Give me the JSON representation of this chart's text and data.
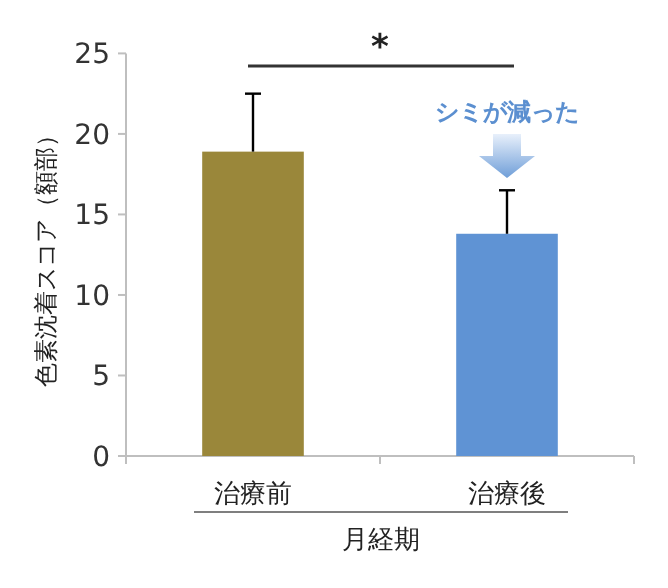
{
  "chart_data": {
    "type": "bar",
    "xlabel": "月経期",
    "ylabel": "色素沈着スコア（額部）",
    "categories": [
      "治療前",
      "治療後"
    ],
    "values": [
      18.9,
      13.8
    ],
    "errors": [
      3.6,
      2.7
    ],
    "colors": [
      "#9a873a",
      "#5f93d4"
    ],
    "ylim": [
      0,
      25
    ],
    "yticks": [
      0,
      5,
      10,
      15,
      20,
      25
    ],
    "grid": false,
    "annotations": [
      "*",
      "シミが減った"
    ]
  }
}
